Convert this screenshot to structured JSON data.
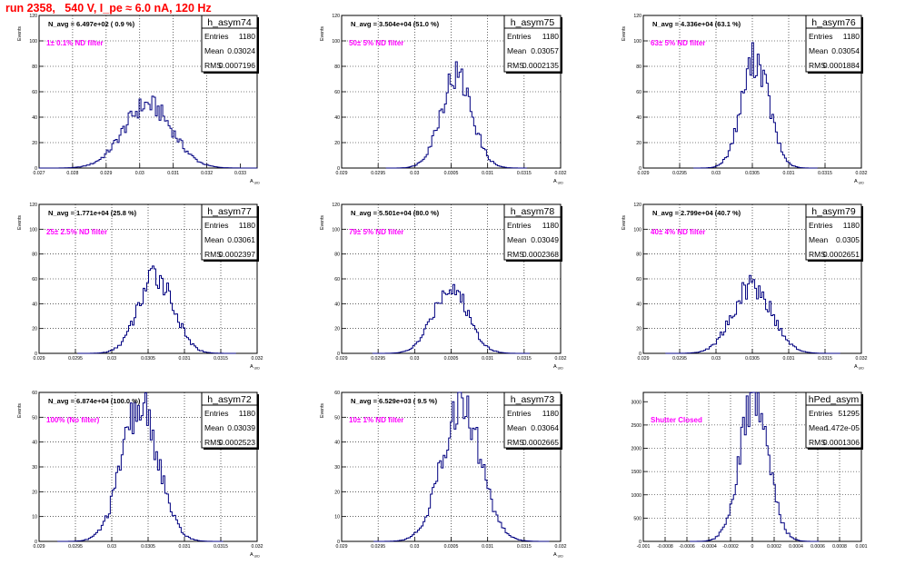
{
  "run_title": "run 2358,   540 V, I_pe ≈ 6.0 nA, 120 Hz",
  "colors": {
    "title": "#ff0000",
    "annotation": "#ff00ff",
    "histogram": "#000080",
    "grid": "#000000"
  },
  "chart_data": [
    {
      "type": "histogram",
      "name": "h_asym74",
      "title_text": "N_avg = 6.497e+02 ( 0.9 %)",
      "annotation": "1± 0.1% ND filter",
      "stats": [
        [
          "Entries",
          "1180"
        ],
        [
          "Mean",
          "0.03024"
        ],
        [
          "RMS",
          "0.0007196"
        ]
      ],
      "ylabel": "Events",
      "xlabel": "A_UID",
      "xlim": [
        0.027,
        0.0335
      ],
      "ylim": [
        0,
        120
      ],
      "xticks": [
        0.027,
        0.028,
        0.029,
        0.03,
        0.031,
        0.032,
        0.033
      ],
      "xtick_labels": [
        "0.027",
        "0.028",
        "0.029",
        "0.03",
        "0.031",
        "0.032",
        "0.033"
      ],
      "yticks": [
        0,
        20,
        40,
        60,
        80,
        100,
        120
      ],
      "mean": 0.03024,
      "rms": 0.0007196,
      "peak": 50,
      "grid": true
    },
    {
      "type": "histogram",
      "name": "h_asym75",
      "title_text": "N_avg = 3.504e+04 (51.0 %)",
      "annotation": "50± 5% ND filter",
      "stats": [
        [
          "Entries",
          "1180"
        ],
        [
          "Mean",
          "0.03057"
        ],
        [
          "RMS",
          "0.0002135"
        ]
      ],
      "ylabel": "Events",
      "xlabel": "A_UID",
      "xlim": [
        0.029,
        0.032
      ],
      "ylim": [
        0,
        120
      ],
      "xticks": [
        0.029,
        0.0295,
        0.03,
        0.0305,
        0.031,
        0.0315,
        0.032
      ],
      "xtick_labels": [
        "0.029",
        "0.0295",
        "0.03",
        "0.0305",
        "0.031",
        "0.0315",
        "0.032"
      ],
      "yticks": [
        0,
        20,
        40,
        60,
        80,
        100,
        120
      ],
      "mean": 0.03057,
      "rms": 0.0002135,
      "peak": 73,
      "grid": true
    },
    {
      "type": "histogram",
      "name": "h_asym76",
      "title_text": "N_avg = 4.336e+04 (63.1 %)",
      "annotation": "63± 5% ND filter",
      "stats": [
        [
          "Entries",
          "1180"
        ],
        [
          "Mean",
          "0.03054"
        ],
        [
          "RMS",
          "0.0001884"
        ]
      ],
      "ylabel": "Events",
      "xlabel": "A_UID",
      "xlim": [
        0.029,
        0.032
      ],
      "ylim": [
        0,
        120
      ],
      "xticks": [
        0.029,
        0.0295,
        0.03,
        0.0305,
        0.031,
        0.0315,
        0.032
      ],
      "xtick_labels": [
        "0.029",
        "0.0295",
        "0.03",
        "0.0305",
        "0.031",
        "0.0315",
        "0.032"
      ],
      "yticks": [
        0,
        20,
        40,
        60,
        80,
        100,
        120
      ],
      "mean": 0.03054,
      "rms": 0.0001884,
      "peak": 86,
      "grid": true
    },
    {
      "type": "histogram",
      "name": "h_asym77",
      "title_text": "N_avg = 1.771e+04 (25.8 %)",
      "annotation": "25± 2.5% ND filter",
      "stats": [
        [
          "Entries",
          "1180"
        ],
        [
          "Mean",
          "0.03061"
        ],
        [
          "RMS",
          "0.0002397"
        ]
      ],
      "ylabel": "Events",
      "xlabel": "A_UID",
      "xlim": [
        0.029,
        0.032
      ],
      "ylim": [
        0,
        120
      ],
      "xticks": [
        0.029,
        0.0295,
        0.03,
        0.0305,
        0.031,
        0.0315,
        0.032
      ],
      "xtick_labels": [
        "0.029",
        "0.0295",
        "0.03",
        "0.0305",
        "0.031",
        "0.0315",
        "0.032"
      ],
      "yticks": [
        0,
        20,
        40,
        60,
        80,
        100,
        120
      ],
      "mean": 0.03061,
      "rms": 0.0002397,
      "peak": 63,
      "grid": true
    },
    {
      "type": "histogram",
      "name": "h_asym78",
      "title_text": "N_avg = 5.501e+04 (80.0 %)",
      "annotation": "79± 5% ND filter",
      "stats": [
        [
          "Entries",
          "1180"
        ],
        [
          "Mean",
          "0.03049"
        ],
        [
          "RMS",
          "0.0002368"
        ]
      ],
      "ylabel": "Events",
      "xlabel": "A_UID",
      "xlim": [
        0.029,
        0.032
      ],
      "ylim": [
        0,
        120
      ],
      "xticks": [
        0.029,
        0.0295,
        0.03,
        0.0305,
        0.031,
        0.0315,
        0.032
      ],
      "xtick_labels": [
        "0.029",
        "0.0295",
        "0.03",
        "0.0305",
        "0.031",
        "0.0315",
        "0.032"
      ],
      "yticks": [
        0,
        20,
        40,
        60,
        80,
        100,
        120
      ],
      "mean": 0.03049,
      "rms": 0.0002368,
      "peak": 54,
      "grid": true
    },
    {
      "type": "histogram",
      "name": "h_asym79",
      "title_text": "N_avg = 2.799e+04 (40.7 %)",
      "annotation": "40± 4% ND filter",
      "stats": [
        [
          "Entries",
          "1180"
        ],
        [
          "Mean",
          "0.0305"
        ],
        [
          "RMS",
          "0.0002651"
        ]
      ],
      "ylabel": "Events",
      "xlabel": "A_UID",
      "xlim": [
        0.029,
        0.032
      ],
      "ylim": [
        0,
        120
      ],
      "xticks": [
        0.029,
        0.0295,
        0.03,
        0.0305,
        0.031,
        0.0315,
        0.032
      ],
      "xtick_labels": [
        "0.029",
        "0.0295",
        "0.03",
        "0.0305",
        "0.031",
        "0.0315",
        "0.032"
      ],
      "yticks": [
        0,
        20,
        40,
        60,
        80,
        100,
        120
      ],
      "mean": 0.0305,
      "rms": 0.0002651,
      "peak": 55,
      "grid": true
    },
    {
      "type": "histogram",
      "name": "h_asym72",
      "title_text": "N_avg = 6.874e+04 (100.0 %)",
      "annotation": "100% (No filter)",
      "stats": [
        [
          "Entries",
          "1180"
        ],
        [
          "Mean",
          "0.03039"
        ],
        [
          "RMS",
          "0.0002523"
        ]
      ],
      "ylabel": "Events",
      "xlabel": "A_UID",
      "xlim": [
        0.029,
        0.032
      ],
      "ylim": [
        0,
        60
      ],
      "xticks": [
        0.029,
        0.0295,
        0.03,
        0.0305,
        0.031,
        0.0315,
        0.032
      ],
      "xtick_labels": [
        "0.029",
        "0.0295",
        "0.03",
        "0.0305",
        "0.031",
        "0.0315",
        "0.032"
      ],
      "yticks": [
        0,
        10,
        20,
        30,
        40,
        50,
        60
      ],
      "mean": 0.03039,
      "rms": 0.0002523,
      "peak": 54,
      "grid": true
    },
    {
      "type": "histogram",
      "name": "h_asym73",
      "title_text": "N_avg = 6.529e+03 ( 9.5 %)",
      "annotation": "10± 1% ND filter",
      "stats": [
        [
          "Entries",
          "1180"
        ],
        [
          "Mean",
          "0.03064"
        ],
        [
          "RMS",
          "0.0002665"
        ]
      ],
      "ylabel": "Events",
      "xlabel": "A_UID",
      "xlim": [
        0.029,
        0.032
      ],
      "ylim": [
        0,
        60
      ],
      "xticks": [
        0.029,
        0.0295,
        0.03,
        0.0305,
        0.031,
        0.0315,
        0.032
      ],
      "xtick_labels": [
        "0.029",
        "0.0295",
        "0.03",
        "0.0305",
        "0.031",
        "0.0315",
        "0.032"
      ],
      "yticks": [
        0,
        10,
        20,
        30,
        40,
        50,
        60
      ],
      "mean": 0.03064,
      "rms": 0.0002665,
      "peak": 55,
      "grid": true
    },
    {
      "type": "histogram",
      "name": "hPed_asym",
      "title_text": "",
      "annotation": "Shutter Closed",
      "stats": [
        [
          "Entries",
          "51295"
        ],
        [
          "Mean",
          "1.472e-05"
        ],
        [
          "RMS",
          "0.0001306"
        ]
      ],
      "ylabel": "",
      "xlabel": "",
      "xlim": [
        -0.001,
        0.001
      ],
      "ylim": [
        0,
        3200
      ],
      "xticks": [
        -0.001,
        -0.0008,
        -0.0006,
        -0.0004,
        -0.0002,
        0,
        0.0002,
        0.0004,
        0.0006,
        0.0008,
        0.001
      ],
      "xtick_labels": [
        "-0.001",
        "-0.0008",
        "-0.0006",
        "-0.0004",
        "-0.0002",
        "0",
        "0.0002",
        "0.0004",
        "0.0006",
        "0.0008",
        "0.001"
      ],
      "yticks": [
        0,
        500,
        1000,
        1500,
        2000,
        2500,
        3000
      ],
      "mean": 1.472e-05,
      "rms": 0.0001306,
      "peak": 3050,
      "grid": true
    }
  ]
}
